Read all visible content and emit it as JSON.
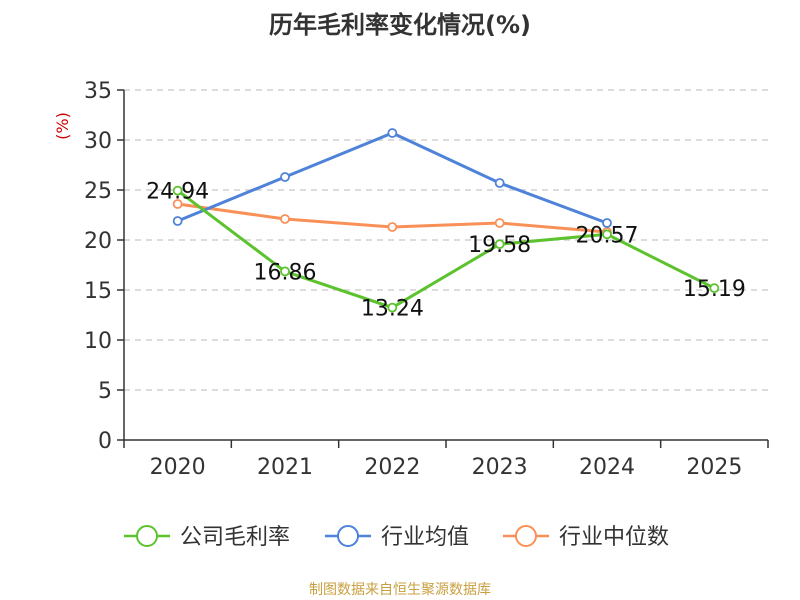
{
  "chart_data": {
    "type": "line",
    "title": "历年毛利率变化情况(%)",
    "ylabel": "(%)",
    "xlabel": "",
    "ylim": [
      0,
      35
    ],
    "yticks": [
      0,
      5,
      10,
      15,
      20,
      25,
      30,
      35
    ],
    "categories": [
      "2020",
      "2021",
      "2022",
      "2023",
      "2024",
      "2025"
    ],
    "grid": true,
    "legend_position": "bottom",
    "series": [
      {
        "name": "公司毛利率",
        "color": "#5cc22e",
        "values": [
          24.94,
          16.86,
          13.24,
          19.58,
          20.57,
          15.19
        ],
        "labels": [
          "24.94",
          "16.86",
          "13.24",
          "19.58",
          "20.57",
          "15.19"
        ]
      },
      {
        "name": "行业均值",
        "color": "#4f82d9",
        "values": [
          21.9,
          26.3,
          30.7,
          25.7,
          21.7,
          null
        ]
      },
      {
        "name": "行业中位数",
        "color": "#f89058",
        "values": [
          23.6,
          22.1,
          21.3,
          21.7,
          20.8,
          null
        ]
      }
    ]
  },
  "footer": {
    "source": "制图数据来自恒生聚源数据库"
  }
}
